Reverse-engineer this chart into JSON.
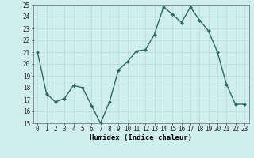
{
  "x": [
    0,
    1,
    2,
    3,
    4,
    5,
    6,
    7,
    8,
    9,
    10,
    11,
    12,
    13,
    14,
    15,
    16,
    17,
    18,
    19,
    20,
    21,
    22,
    23
  ],
  "y": [
    21.0,
    17.5,
    16.8,
    17.1,
    18.2,
    18.0,
    16.5,
    15.0,
    16.8,
    19.5,
    20.2,
    21.1,
    21.2,
    22.5,
    24.8,
    24.2,
    23.5,
    24.8,
    23.7,
    22.8,
    21.0,
    18.3,
    16.6,
    16.6
  ],
  "line_color": "#2d6b5e",
  "marker": "D",
  "marker_size": 2.0,
  "bg_color": "#d0eeee",
  "grid_color": "#b8d8d8",
  "xlabel": "Humidex (Indice chaleur)",
  "ylim": [
    15,
    25
  ],
  "xlim": [
    -0.5,
    23.5
  ],
  "yticks": [
    15,
    16,
    17,
    18,
    19,
    20,
    21,
    22,
    23,
    24,
    25
  ],
  "xticks": [
    0,
    1,
    2,
    3,
    4,
    5,
    6,
    7,
    8,
    9,
    10,
    11,
    12,
    13,
    14,
    15,
    16,
    17,
    18,
    19,
    20,
    21,
    22,
    23
  ],
  "tick_fontsize": 5.5,
  "label_fontsize": 6.5,
  "line_width": 1.0
}
